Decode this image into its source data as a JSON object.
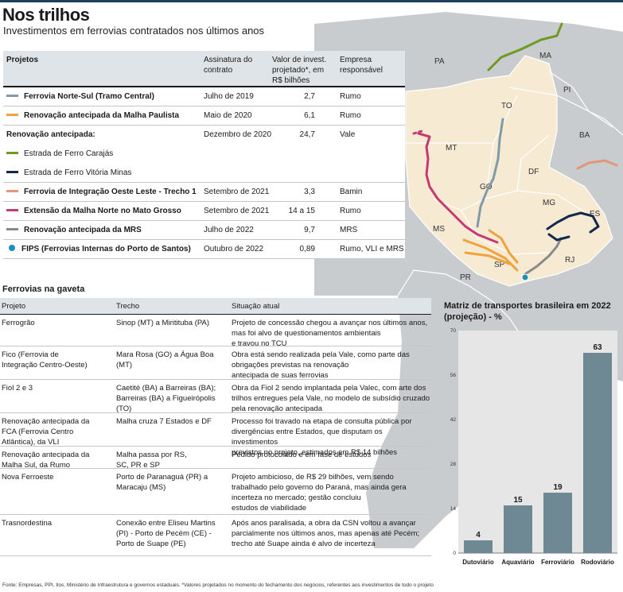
{
  "header": {
    "title": "Nos trilhos",
    "subtitle": "Investimentos em ferrovias contratados nos últimos anos"
  },
  "projects_table": {
    "headers": {
      "project": "Projetos",
      "signature": "Assinatura do contrato",
      "value": "Valor de invest. projetado*, em R$ bilhões",
      "company": "Empresa responsável"
    },
    "rows": [
      {
        "name": "Ferrovia Norte-Sul (Tramo Central)",
        "date": "Julho de 2019",
        "value": "2,7",
        "company": "Rumo",
        "color": "#7f9aa8",
        "marker": "line",
        "bold": true
      },
      {
        "name": "Renovação antecipada da Malha Paulista",
        "date": "Maio de 2020",
        "value": "6,1",
        "company": "Rumo",
        "color": "#f0a33c",
        "marker": "line",
        "bold": true
      },
      {
        "name": "Renovação antecipada:",
        "date": "Dezembro de 2020",
        "value": "24,7",
        "company": "Vale",
        "color": "",
        "marker": "none",
        "bold": true
      },
      {
        "name": "Estrada de Ferro Carajás",
        "date": "",
        "value": "",
        "company": "",
        "color": "#6f9a22",
        "marker": "line",
        "bold": false
      },
      {
        "name": "Estrada de Ferro Vitória Minas",
        "date": "",
        "value": "",
        "company": "",
        "color": "#142a4c",
        "marker": "line",
        "bold": false
      },
      {
        "name": "Ferrovia de Integração Oeste Leste - Trecho 1",
        "date": "Setembro de 2021",
        "value": "3,3",
        "company": "Bamin",
        "color": "#e4967b",
        "marker": "line",
        "bold": true
      },
      {
        "name": "Extensão da Malha Norte no Mato Grosso",
        "date": "Setembro de 2021",
        "value": "14 a 15",
        "company": "Rumo",
        "color": "#c43a74",
        "marker": "line",
        "bold": true
      },
      {
        "name": "Renovação antecipada da MRS",
        "date": "Julho de 2022",
        "value": "9,7",
        "company": "MRS",
        "color": "#8a8a8a",
        "marker": "line",
        "bold": true
      },
      {
        "name": "FIPS (Ferrovias Internas do Porto de Santos)",
        "date": "Outubro de 2022",
        "value": "0,89",
        "company": "Rumo, VLI e MRS",
        "color": "#1b8fb8",
        "marker": "dot",
        "bold": true
      }
    ]
  },
  "shelved": {
    "title": "Ferrovias na gaveta",
    "headers": {
      "project": "Projeto",
      "stretch": "Trecho",
      "status": "Situação atual"
    },
    "rows": [
      {
        "project": [
          "Ferrogrão"
        ],
        "stretch": [
          "Sinop (MT) a Miritituba (PA)"
        ],
        "status": [
          "Projeto de concessão chegou a avançar nos últimos anos,",
          "mas foi alvo de questionamentos ambientais",
          "e travou no TCU"
        ]
      },
      {
        "project": [
          "Fico (Ferrovia de",
          "Integração Centro-Oeste)"
        ],
        "stretch": [
          "Mara Rosa (GO) a Água Boa",
          "(MT)"
        ],
        "status": [
          "Obra está sendo realizada pela Vale, como parte das",
          "obrigações previstas na renovação",
          "antecipada de suas ferrovias"
        ]
      },
      {
        "project": [
          "Fiol 2 e 3"
        ],
        "stretch": [
          "Caetité (BA) a Barreiras (BA);",
          "Barreiras (BA) a Figueirópolis",
          "(TO)"
        ],
        "status": [
          "Obra da Fiol 2 sendo implantada pela Valec, com arte dos",
          "trilhos entregues pela Vale, no modelo de subsídio cruzado",
          "pela renovação antecipada"
        ]
      },
      {
        "project": [
          "Renovação antecipada da",
          "FCA (Ferrovia Centro",
          "Atlântica), da VLI"
        ],
        "stretch": [
          "Malha cruza 7 Estados e DF"
        ],
        "status": [
          "Processo foi travado na etapa de consulta pública por",
          "divergências entre Estados, que disputam os investimentos",
          "previstos no projeto, estimados em R$ 14 bilhões"
        ]
      },
      {
        "project": [
          "Renovação antecipada da",
          "Malha Sul, da Rumo"
        ],
        "stretch": [
          "Malha passa por RS,",
          "SC, PR e SP"
        ],
        "status": [
          "Pedido protocolado e em fase de estudos"
        ]
      },
      {
        "project": [
          "Nova Ferroeste"
        ],
        "stretch": [
          "Porto de Paranaguá (PR) a",
          "Maracaju (MS)"
        ],
        "status": [
          "Projeto ambicioso, de R$ 29 bilhões, vem sendo",
          "trabalhado pelo governo do Paraná, mas ainda gera",
          "incerteza no mercado; gestão concluiu",
          "estudos de viabilidade"
        ]
      },
      {
        "project": [
          "Trasnordestina"
        ],
        "stretch": [
          "Conexão entre Eliseu Martins",
          "(PI) - Porto de Pecém (CE) -",
          "Porto de Suape (PE)"
        ],
        "status": [
          "Após anos paralisada, a obra da CSN voltou a avançar",
          "parcialmente nos últimos anos, mas apenas até Pecém;",
          "trecho até Suape ainda é alvo de incerteza"
        ]
      }
    ]
  },
  "map": {
    "state_labels": [
      "PA",
      "MA",
      "PI",
      "TO",
      "BA",
      "MT",
      "DF",
      "GO",
      "MG",
      "ES",
      "MS",
      "SP",
      "RJ",
      "PR"
    ],
    "colors": {
      "land": "#c9ccce",
      "highlight": "#f6ead3",
      "border": "#ffffff",
      "water": "#ffffff"
    }
  },
  "chart_data": {
    "type": "bar",
    "title": "Matriz de transportes brasileira em 2022 (projeção) - %",
    "categories": [
      "Dutoviário",
      "Aquaviário",
      "Ferroviário",
      "Rodoviário"
    ],
    "values": [
      4,
      15,
      19,
      63
    ],
    "value_labels": [
      "4",
      "15",
      "19",
      "63"
    ],
    "ylim": [
      0,
      70
    ],
    "yticks": [
      0,
      14,
      28,
      42,
      56,
      70
    ],
    "bar_color": "#6f8994",
    "background": "#e6e6e6",
    "grid": false
  },
  "footnote": "Fonte: Empresas, PPI, Ilos, Ministério de Infraestrutura e governos estaduais. *Valores projetados no momento do fechamento dos negócios, referentes aos investimentos de todo o projeto"
}
